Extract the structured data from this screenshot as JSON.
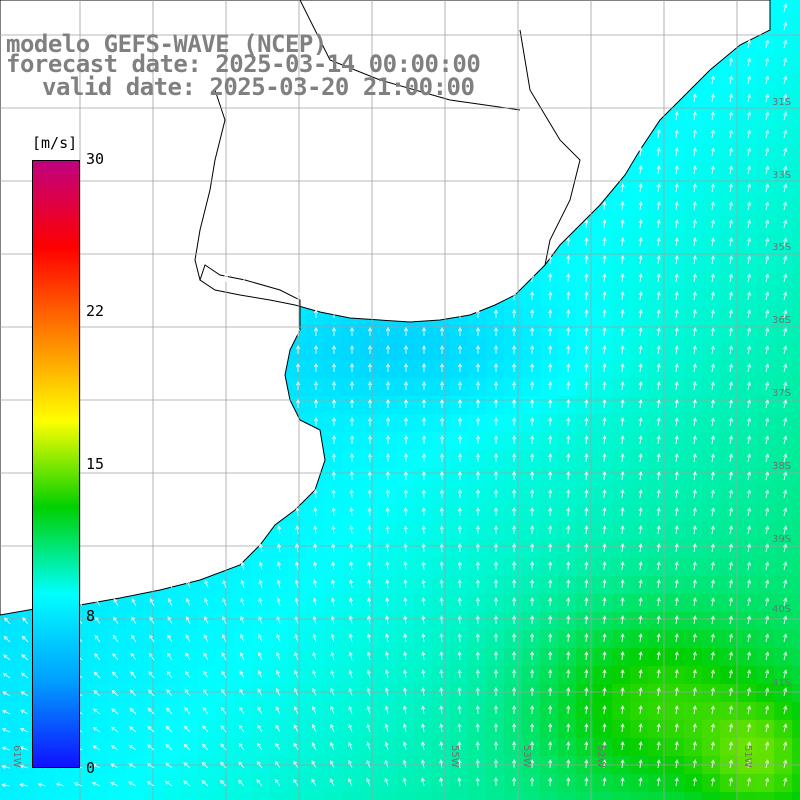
{
  "title": {
    "line1": "modelo GEFS-WAVE (NCEP)",
    "line2": "forecast date: 2025-03-14 00:00:00",
    "line3": "valid date: 2025-03-20 21:00:00"
  },
  "colorbar": {
    "unit": "[m/s]",
    "ticks": [
      "30",
      "22",
      "15",
      "8",
      "0"
    ],
    "tick_values": [
      30,
      22,
      15,
      8,
      0
    ],
    "colors": [
      "#1010ff",
      "#00a0ff",
      "#00ffff",
      "#00d000",
      "#ffff00",
      "#ff8000",
      "#ff0000",
      "#c00080"
    ]
  },
  "map": {
    "lat_labels": [
      "31S",
      "33S",
      "35S",
      "36S",
      "37S",
      "38S",
      "39S",
      "40S",
      "41S"
    ],
    "lon_labels": [
      "61W",
      "55W",
      "53W",
      "52W",
      "51W"
    ],
    "land_color": "#ffffff",
    "grid_color": "#a0a0a0",
    "arrow_color": "#ffffff"
  }
}
